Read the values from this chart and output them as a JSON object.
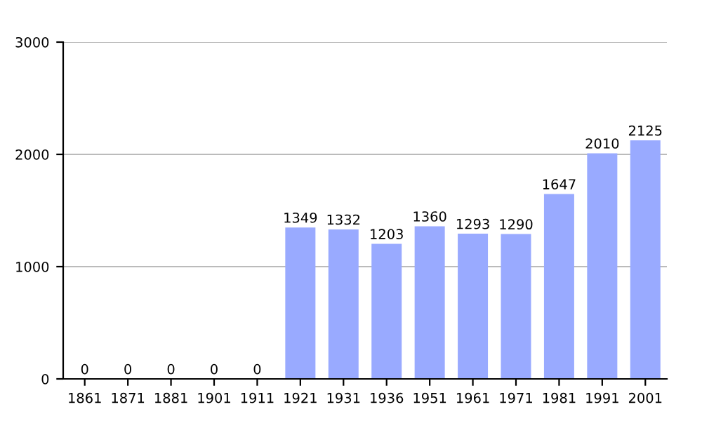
{
  "chart_data": {
    "type": "bar",
    "categories": [
      "1861",
      "1871",
      "1881",
      "1901",
      "1911",
      "1921",
      "1931",
      "1936",
      "1951",
      "1961",
      "1971",
      "1981",
      "1991",
      "2001"
    ],
    "values": [
      0,
      0,
      0,
      0,
      0,
      1349,
      1332,
      1203,
      1360,
      1293,
      1290,
      1647,
      2010,
      2125
    ],
    "color": "#99aaff",
    "ylim": [
      0,
      3000
    ],
    "yticks": [
      0,
      1000,
      2000,
      3000
    ],
    "grid": "y",
    "data_labels": true
  }
}
